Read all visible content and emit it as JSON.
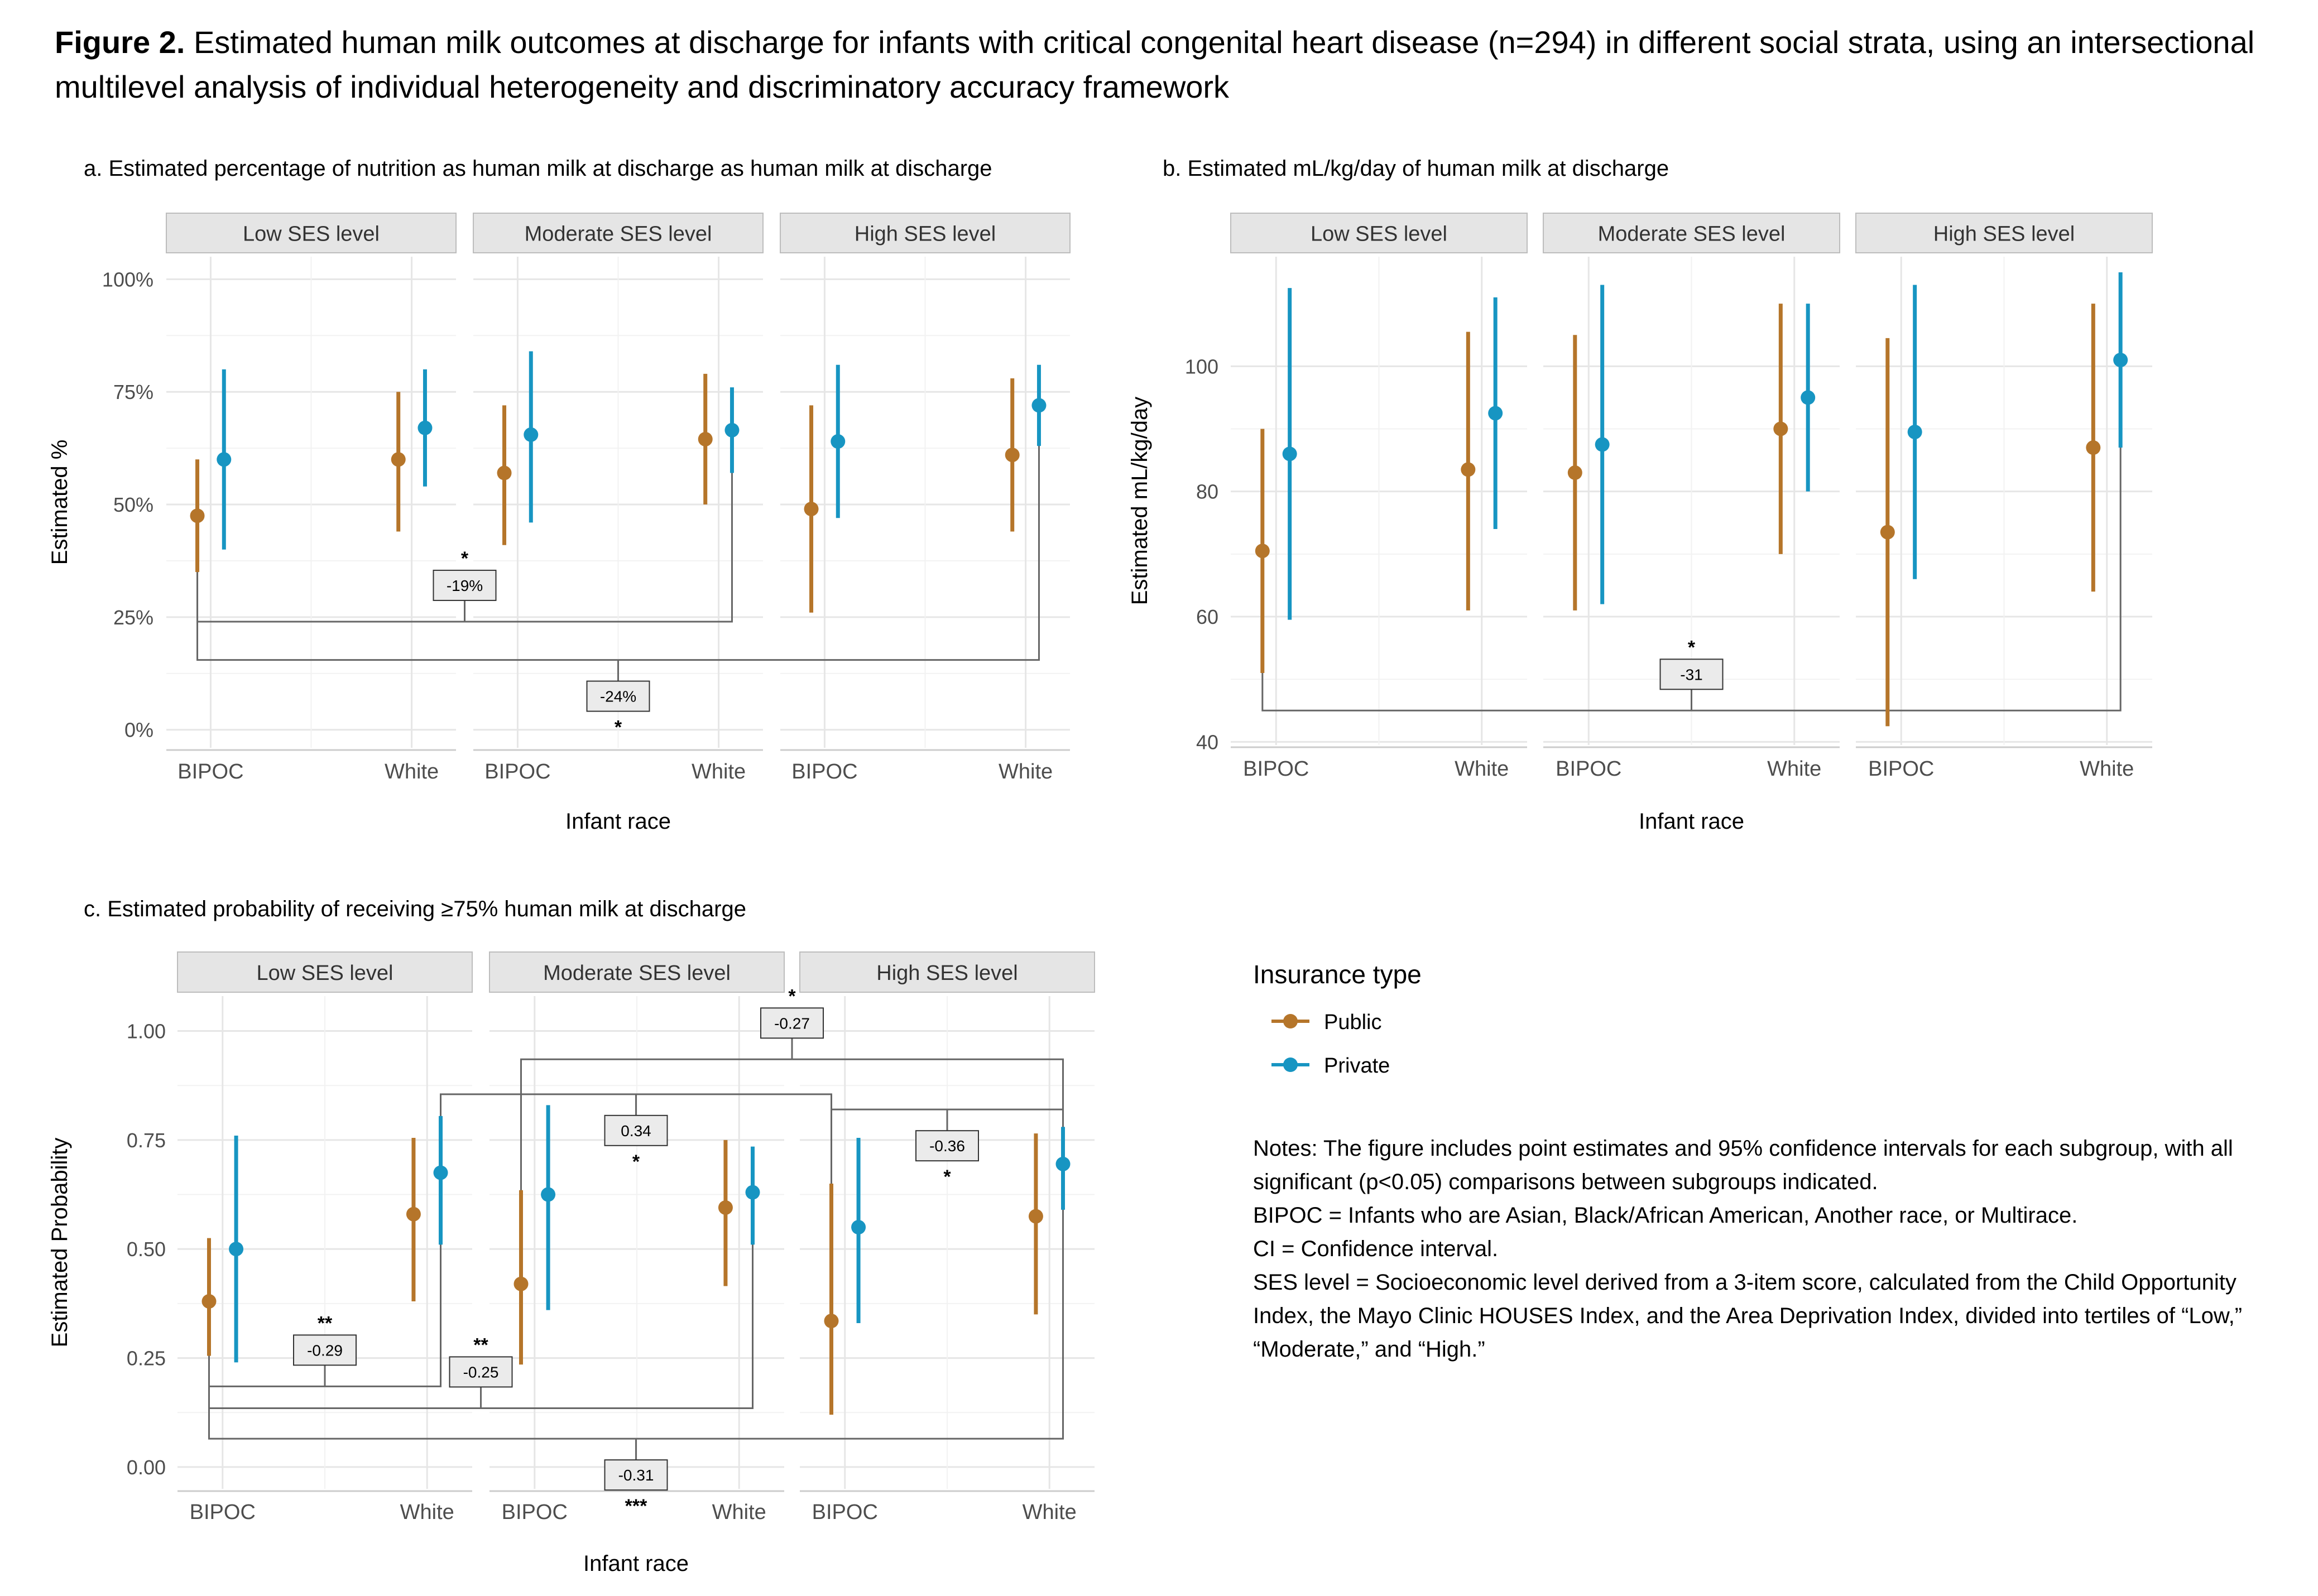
{
  "figure": {
    "label": "Figure 2.",
    "title": "Estimated human milk outcomes at discharge for infants with critical congenital heart disease (n=294) in different social strata, using an intersectional multilevel analysis of individual heterogeneity and discriminatory accuracy framework"
  },
  "colors": {
    "Public": "#B5752A",
    "Private": "#1795C2",
    "grid": "#E6E6E6",
    "strip": "#E5E5E5",
    "bracket": "#666666"
  },
  "legend": {
    "title": "Insurance type",
    "items": [
      {
        "name": "Public",
        "color": "#B5752A"
      },
      {
        "name": "Private",
        "color": "#1795C2"
      }
    ]
  },
  "notes": [
    "Notes: The figure includes point estimates and 95% confidence intervals for each subgroup, with all significant (p<0.05) comparisons between subgroups indicated.",
    "BIPOC = Infants who are Asian, Black/African American, Another race, or Multirace.",
    "CI = Confidence interval.",
    "SES level = Socioeconomic level derived from a 3-item score, calculated from the Child Opportunity Index, the Mayo Clinic HOUSES Index, and the Area Deprivation Index, divided into tertiles of “Low,” “Moderate,” and “High.”"
  ],
  "chart_data": [
    {
      "id": "a",
      "type": "pointrange",
      "title": "a. Estimated percentage of nutrition as human milk at discharge as human milk at discharge",
      "xlabel": "Infant race",
      "ylabel": "Estimated %",
      "ylim": [
        -0.04,
        1.05
      ],
      "yticks": [
        0,
        0.25,
        0.5,
        0.75,
        1.0
      ],
      "ytick_labels": [
        "0%",
        "25%",
        "50%",
        "75%",
        "100%"
      ],
      "facets": [
        "Low SES level",
        "Moderate SES level",
        "High SES level"
      ],
      "races": [
        "BIPOC",
        "White"
      ],
      "points": [
        {
          "ses": 0,
          "race": 0,
          "ins": "Public",
          "est": 0.475,
          "lo": 0.35,
          "hi": 0.6
        },
        {
          "ses": 0,
          "race": 0,
          "ins": "Private",
          "est": 0.6,
          "lo": 0.4,
          "hi": 0.8
        },
        {
          "ses": 0,
          "race": 1,
          "ins": "Public",
          "est": 0.6,
          "lo": 0.44,
          "hi": 0.75
        },
        {
          "ses": 0,
          "race": 1,
          "ins": "Private",
          "est": 0.67,
          "lo": 0.54,
          "hi": 0.8
        },
        {
          "ses": 1,
          "race": 0,
          "ins": "Public",
          "est": 0.57,
          "lo": 0.41,
          "hi": 0.72
        },
        {
          "ses": 1,
          "race": 0,
          "ins": "Private",
          "est": 0.655,
          "lo": 0.46,
          "hi": 0.84
        },
        {
          "ses": 1,
          "race": 1,
          "ins": "Public",
          "est": 0.645,
          "lo": 0.5,
          "hi": 0.79
        },
        {
          "ses": 1,
          "race": 1,
          "ins": "Private",
          "est": 0.665,
          "lo": 0.57,
          "hi": 0.76
        },
        {
          "ses": 2,
          "race": 0,
          "ins": "Public",
          "est": 0.49,
          "lo": 0.26,
          "hi": 0.72
        },
        {
          "ses": 2,
          "race": 0,
          "ins": "Private",
          "est": 0.64,
          "lo": 0.47,
          "hi": 0.81
        },
        {
          "ses": 2,
          "race": 1,
          "ins": "Public",
          "est": 0.61,
          "lo": 0.44,
          "hi": 0.78
        },
        {
          "ses": 2,
          "race": 1,
          "ins": "Private",
          "est": 0.72,
          "lo": 0.63,
          "hi": 0.81
        }
      ],
      "comparisons": [
        {
          "from": {
            "ses": 0,
            "race": 0,
            "ins": "Public"
          },
          "to": {
            "ses": 1,
            "race": 1,
            "ins": "Private"
          },
          "y": 0.24,
          "label": "-19%",
          "stars": "*",
          "label_side": "above"
        },
        {
          "from": {
            "ses": 0,
            "race": 0,
            "ins": "Public"
          },
          "to": {
            "ses": 2,
            "race": 1,
            "ins": "Private"
          },
          "y": 0.155,
          "label": "-24%",
          "stars": "*",
          "label_side": "below"
        }
      ]
    },
    {
      "id": "b",
      "type": "pointrange",
      "title": "b. Estimated mL/kg/day of human milk at discharge",
      "xlabel": "Infant race",
      "ylabel": "Estimated mL/kg/day",
      "ylim": [
        39.5,
        117.5
      ],
      "yticks": [
        40,
        60,
        80,
        100
      ],
      "ytick_labels": [
        "40",
        "60",
        "80",
        "100"
      ],
      "facets": [
        "Low SES level",
        "Moderate SES level",
        "High SES level"
      ],
      "races": [
        "BIPOC",
        "White"
      ],
      "points": [
        {
          "ses": 0,
          "race": 0,
          "ins": "Public",
          "est": 70.5,
          "lo": 51,
          "hi": 90
        },
        {
          "ses": 0,
          "race": 0,
          "ins": "Private",
          "est": 86,
          "lo": 59.5,
          "hi": 112.5
        },
        {
          "ses": 0,
          "race": 1,
          "ins": "Public",
          "est": 83.5,
          "lo": 61,
          "hi": 105.5
        },
        {
          "ses": 0,
          "race": 1,
          "ins": "Private",
          "est": 92.5,
          "lo": 74,
          "hi": 111
        },
        {
          "ses": 1,
          "race": 0,
          "ins": "Public",
          "est": 83,
          "lo": 61,
          "hi": 105
        },
        {
          "ses": 1,
          "race": 0,
          "ins": "Private",
          "est": 87.5,
          "lo": 62,
          "hi": 113
        },
        {
          "ses": 1,
          "race": 1,
          "ins": "Public",
          "est": 90,
          "lo": 70,
          "hi": 110
        },
        {
          "ses": 1,
          "race": 1,
          "ins": "Private",
          "est": 95,
          "lo": 80,
          "hi": 110
        },
        {
          "ses": 2,
          "race": 0,
          "ins": "Public",
          "est": 73.5,
          "lo": 42.5,
          "hi": 104.5
        },
        {
          "ses": 2,
          "race": 0,
          "ins": "Private",
          "est": 89.5,
          "lo": 66,
          "hi": 113
        },
        {
          "ses": 2,
          "race": 1,
          "ins": "Public",
          "est": 87,
          "lo": 64,
          "hi": 110
        },
        {
          "ses": 2,
          "race": 1,
          "ins": "Private",
          "est": 101,
          "lo": 87,
          "hi": 115
        }
      ],
      "comparisons": [
        {
          "from": {
            "ses": 0,
            "race": 0,
            "ins": "Public"
          },
          "to": {
            "ses": 2,
            "race": 1,
            "ins": "Private"
          },
          "y": 45,
          "label": "-31",
          "stars": "*",
          "label_side": "above"
        }
      ]
    },
    {
      "id": "c",
      "type": "pointrange",
      "title": "c. Estimated probability of receiving  ≥75% human milk at discharge",
      "xlabel": "Infant race",
      "ylabel": "Estimated Probability",
      "ylim": [
        -0.05,
        1.08
      ],
      "yticks": [
        0,
        0.25,
        0.5,
        0.75,
        1.0
      ],
      "ytick_labels": [
        "0.00",
        "0.25",
        "0.50",
        "0.75",
        "1.00"
      ],
      "facets": [
        "Low SES level",
        "Moderate SES level",
        "High SES level"
      ],
      "races": [
        "BIPOC",
        "White"
      ],
      "points": [
        {
          "ses": 0,
          "race": 0,
          "ins": "Public",
          "est": 0.38,
          "lo": 0.255,
          "hi": 0.525
        },
        {
          "ses": 0,
          "race": 0,
          "ins": "Private",
          "est": 0.5,
          "lo": 0.24,
          "hi": 0.76
        },
        {
          "ses": 0,
          "race": 1,
          "ins": "Public",
          "est": 0.58,
          "lo": 0.38,
          "hi": 0.755
        },
        {
          "ses": 0,
          "race": 1,
          "ins": "Private",
          "est": 0.675,
          "lo": 0.51,
          "hi": 0.805
        },
        {
          "ses": 1,
          "race": 0,
          "ins": "Public",
          "est": 0.42,
          "lo": 0.235,
          "hi": 0.635
        },
        {
          "ses": 1,
          "race": 0,
          "ins": "Private",
          "est": 0.625,
          "lo": 0.36,
          "hi": 0.83
        },
        {
          "ses": 1,
          "race": 1,
          "ins": "Public",
          "est": 0.595,
          "lo": 0.415,
          "hi": 0.75
        },
        {
          "ses": 1,
          "race": 1,
          "ins": "Private",
          "est": 0.63,
          "lo": 0.51,
          "hi": 0.735
        },
        {
          "ses": 2,
          "race": 0,
          "ins": "Public",
          "est": 0.335,
          "lo": 0.12,
          "hi": 0.65
        },
        {
          "ses": 2,
          "race": 0,
          "ins": "Private",
          "est": 0.55,
          "lo": 0.33,
          "hi": 0.755
        },
        {
          "ses": 2,
          "race": 1,
          "ins": "Public",
          "est": 0.575,
          "lo": 0.35,
          "hi": 0.765
        },
        {
          "ses": 2,
          "race": 1,
          "ins": "Private",
          "est": 0.695,
          "lo": 0.59,
          "hi": 0.78
        }
      ],
      "comparisons": [
        {
          "from": {
            "ses": 1,
            "race": 0,
            "ins": "Public"
          },
          "to": {
            "ses": 2,
            "race": 1,
            "ins": "Private"
          },
          "y": 0.935,
          "label": "-0.27",
          "stars": "*",
          "label_side": "above"
        },
        {
          "from": {
            "ses": 0,
            "race": 1,
            "ins": "Private"
          },
          "to": {
            "ses": 2,
            "race": 0,
            "ins": "Public"
          },
          "y": 0.855,
          "label": "0.34",
          "stars": "*",
          "label_side": "below"
        },
        {
          "from": {
            "ses": 2,
            "race": 0,
            "ins": "Public"
          },
          "to": {
            "ses": 2,
            "race": 1,
            "ins": "Private"
          },
          "y": 0.82,
          "label": "-0.36",
          "stars": "*",
          "label_side": "below"
        },
        {
          "from": {
            "ses": 0,
            "race": 0,
            "ins": "Public"
          },
          "to": {
            "ses": 0,
            "race": 1,
            "ins": "Private"
          },
          "y": 0.185,
          "label": "-0.29",
          "stars": "**",
          "label_side": "above"
        },
        {
          "from": {
            "ses": 0,
            "race": 0,
            "ins": "Public"
          },
          "to": {
            "ses": 1,
            "race": 1,
            "ins": "Private"
          },
          "y": 0.135,
          "label": "-0.25",
          "stars": "**",
          "label_side": "above"
        },
        {
          "from": {
            "ses": 0,
            "race": 0,
            "ins": "Public"
          },
          "to": {
            "ses": 2,
            "race": 1,
            "ins": "Private"
          },
          "y": 0.065,
          "label": "-0.31",
          "stars": "***",
          "label_side": "below"
        }
      ]
    }
  ]
}
